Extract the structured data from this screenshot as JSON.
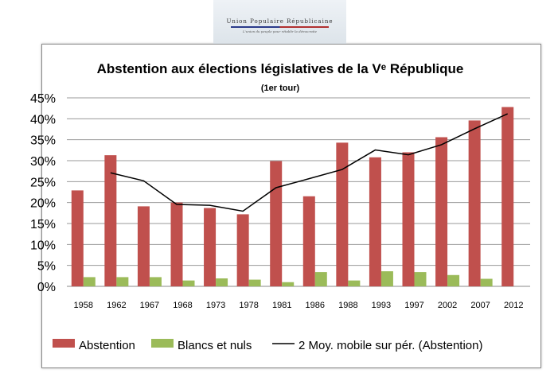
{
  "logo": {
    "name": "Union Populaire Républicaine",
    "tagline": "L'union du peuple pour rétablir la démocratie"
  },
  "chart_data": {
    "type": "bar",
    "title": "Abstention aux élections législatives de la Vᵉ République",
    "subtitle": "(1er tour)",
    "categories": [
      "1958",
      "1962",
      "1967",
      "1968",
      "1973",
      "1978",
      "1981",
      "1986",
      "1988",
      "1993",
      "1997",
      "2002",
      "2007",
      "2012"
    ],
    "series": [
      {
        "name": "Abstention",
        "type": "bar",
        "color": "#c0504d",
        "values": [
          22.9,
          31.3,
          19.1,
          20.0,
          18.7,
          17.2,
          29.9,
          21.5,
          34.3,
          30.8,
          32.0,
          35.6,
          39.6,
          42.8
        ]
      },
      {
        "name": "Blancs et nuls",
        "type": "bar",
        "color": "#9bbb59",
        "values": [
          2.2,
          2.2,
          2.2,
          1.4,
          1.9,
          1.6,
          1.0,
          3.4,
          1.4,
          3.6,
          3.4,
          2.7,
          1.8,
          null
        ]
      },
      {
        "name": "2 Moy. mobile sur pér. (Abstention)",
        "type": "line",
        "color": "#000000",
        "values": [
          null,
          27.1,
          25.2,
          19.55,
          19.35,
          17.95,
          23.55,
          25.7,
          27.9,
          32.55,
          31.4,
          33.8,
          37.6,
          41.2
        ]
      }
    ],
    "yticks": [
      "0%",
      "5%",
      "10%",
      "15%",
      "20%",
      "25%",
      "30%",
      "35%",
      "40%",
      "45%"
    ],
    "ylim": [
      0,
      45
    ],
    "grid": true,
    "legend": "bottom"
  }
}
